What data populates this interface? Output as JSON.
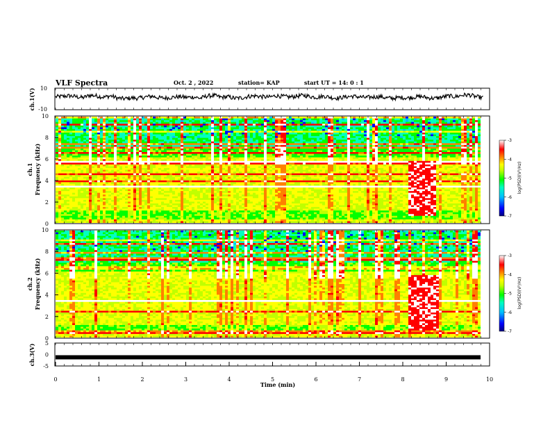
{
  "header": {
    "title": "VLF Spectra",
    "date": "Oct. 2 , 2022",
    "station": "station= KAP",
    "start": "start  UT  =   14: 0  : 1"
  },
  "chart_data": [
    {
      "type": "line",
      "name": "ch1-voltage",
      "ylabel": "ch.1(V)",
      "ylim": [
        -10,
        10
      ],
      "yticks": [
        "10",
        "-10"
      ],
      "x_range_min": [
        0,
        9.85
      ],
      "values_approx": [
        2.0,
        2.4,
        3.0,
        2.1,
        1.2,
        3.5,
        2.8,
        1.6,
        2.9,
        0.8,
        0.2,
        1.0,
        0.6,
        1.8,
        2.6,
        1.1,
        0.9,
        1.6,
        2.2,
        1.4,
        1.9,
        0.7,
        2.8,
        3.2,
        1.5,
        2.1,
        0.6,
        1.0,
        2.4,
        2.9,
        2.0,
        1.7,
        3.1,
        2.3,
        1.8,
        2.6,
        3.4,
        2.2,
        1.6,
        2.7,
        1.3,
        0.8,
        1.9,
        2.5,
        2.0,
        1.2,
        1.8,
        2.2,
        1.0,
        0.6,
        1.4,
        0.9,
        1.7,
        2.3,
        1.1,
        0.5,
        1.6,
        2.8,
        2.1,
        3.5,
        3.8,
        2.0,
        1.2
      ]
    },
    {
      "type": "heatmap",
      "name": "ch1-spectrogram",
      "ylabel": "ch.1",
      "ylabel2": "Frequency  (kHz)",
      "ylim_khz": [
        0,
        10
      ],
      "yticks": [
        "0",
        "2",
        "4",
        "6",
        "8",
        "10"
      ],
      "x_range_min": [
        0,
        9.85
      ],
      "burst_min": [
        8.15,
        8.8
      ],
      "colorbar": {
        "min": -7,
        "max": -3,
        "ticks": [
          "-3",
          "-4",
          "-5",
          "-6",
          "-7"
        ],
        "label": "log(PSD)(V²/Hz)"
      }
    },
    {
      "type": "heatmap",
      "name": "ch2-spectrogram",
      "ylabel": "ch.2",
      "ylabel2": "Frequency  (kHz)",
      "ylim_khz": [
        0,
        10
      ],
      "yticks": [
        "0",
        "2",
        "4",
        "6",
        "8",
        "10"
      ],
      "x_range_min": [
        0,
        9.85
      ],
      "burst_min": [
        8.15,
        8.85
      ],
      "colorbar": {
        "min": -7,
        "max": -3,
        "ticks": [
          "-3",
          "-4",
          "-5",
          "-6",
          "-7"
        ],
        "label": "log(PSD)(V²/Hz)"
      }
    },
    {
      "type": "line",
      "name": "ch3-voltage",
      "ylabel": "ch.3(V)",
      "ylim": [
        -5,
        5
      ],
      "yticks": [
        "5",
        "0",
        "-5"
      ],
      "x_range_min": [
        0,
        9.85
      ],
      "constant_value": -1.2,
      "xlabel": "Time  (min)",
      "xticks": [
        "0",
        "1",
        "2",
        "3",
        "4",
        "5",
        "6",
        "7",
        "8",
        "9",
        "10"
      ]
    }
  ],
  "colors": {
    "scale": [
      "#000080",
      "#0000ff",
      "#00bfff",
      "#00ffc0",
      "#00ff00",
      "#c0ff00",
      "#ffff00",
      "#ff8000",
      "#ff0000",
      "#ffffff"
    ],
    "axis": "#000000"
  }
}
